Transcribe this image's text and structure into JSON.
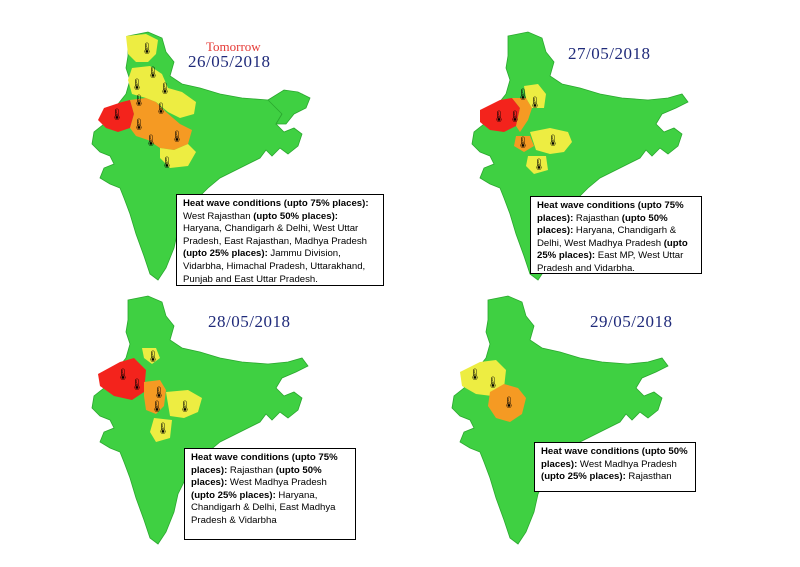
{
  "colors": {
    "no_warning": "#3fd042",
    "low": "#eded42",
    "medium": "#f59a23",
    "high": "#f3231c",
    "date_text": "#1f2a7a",
    "tomorrow_text": "#e53935"
  },
  "legend_severity_order": [
    "green",
    "yellow",
    "orange",
    "red"
  ],
  "icon": "thermometer-icon",
  "panels": [
    {
      "tomorrow": "Tomorrow",
      "date": "26/05/2018",
      "box": [
        {
          "b": "Heat wave conditions (upto 75% places):"
        },
        {
          "t": " West Rajasthan "
        },
        {
          "b": "(upto 50% places):"
        },
        {
          "t": " Haryana, Chandigarh & Delhi, West  Uttar Pradesh, East Rajasthan, Madhya Pradesh "
        },
        {
          "b": "(upto 25% places):"
        },
        {
          "t": " Jammu Division, Vidarbha, Himachal Pradesh, Uttarakhand, Punjab and East Uttar Pradesh."
        }
      ]
    },
    {
      "date": "27/05/2018",
      "box": [
        {
          "b": "Heat wave conditions (upto 75% places):"
        },
        {
          "t": " Rajasthan "
        },
        {
          "b": "(upto 50% places):"
        },
        {
          "t": "  Haryana, Chandigarh & Delhi, West Madhya Pradesh "
        },
        {
          "b": "(upto 25% places):"
        },
        {
          "t": " East MP, West Uttar Pradesh and Vidarbha."
        }
      ]
    },
    {
      "date": "28/05/2018",
      "box": [
        {
          "b": "Heat wave conditions (upto 75% places):"
        },
        {
          "t": " Rajasthan "
        },
        {
          "b": "(upto 50% places):"
        },
        {
          "t": "  West Madhya Pradesh "
        },
        {
          "b": "(upto 25% places):"
        },
        {
          "t": " Haryana, Chandigarh & Delhi, East Madhya Pradesh & Vidarbha"
        }
      ]
    },
    {
      "date": "29/05/2018",
      "box": [
        {
          "b": "Heat wave conditions (upto 50% places):"
        },
        {
          "t": " West Madhya Pradesh "
        },
        {
          "b": "(upto 25% places):"
        },
        {
          "t": " Rajasthan"
        }
      ]
    }
  ]
}
